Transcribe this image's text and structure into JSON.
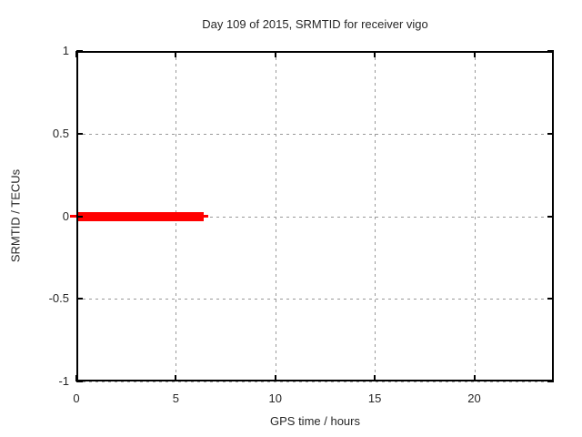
{
  "title": "Day 109 of 2015, SRMTID for receiver vigo",
  "axes": {
    "xlabel": "GPS time / hours",
    "ylabel": "SRMTID / TECUs"
  },
  "colors": {
    "series": "#ff0000",
    "grid": "#999999",
    "axis": "#000000",
    "text": "#262626",
    "background": "#ffffff"
  },
  "chart_data": {
    "type": "line",
    "title": "Day 109 of 2015, SRMTID for receiver vigo",
    "xlabel": "GPS time / hours",
    "ylabel": "SRMTID / TECUs",
    "xlim": [
      0,
      24
    ],
    "ylim": [
      -1,
      1
    ],
    "xticks": [
      0,
      5,
      10,
      15,
      20
    ],
    "yticks": [
      -1,
      -0.5,
      0,
      0.5,
      1
    ],
    "grid": true,
    "legend": false,
    "series": [
      {
        "name": "SRMTID",
        "color": "#ff0000",
        "style": "thick-line",
        "points": [
          [
            0,
            0
          ],
          [
            6.4,
            0
          ]
        ]
      }
    ]
  }
}
